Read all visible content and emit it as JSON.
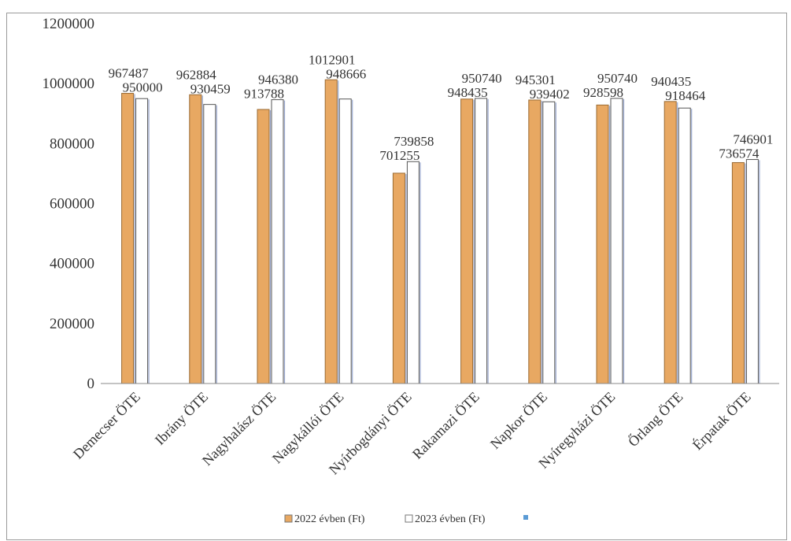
{
  "chart_data": {
    "type": "bar",
    "title": "",
    "xlabel": "",
    "ylabel": "",
    "ylim": [
      0,
      1200000
    ],
    "yticks": [
      0,
      200000,
      400000,
      600000,
      800000,
      1000000,
      1200000
    ],
    "grid": false,
    "legend_position": "bottom",
    "categories": [
      "Demecser ÖTE",
      "Ibrány ÖTE",
      "Nagyhalász ÖTE",
      "Nagykállói ÖTE",
      "Nyírbogdányi ÖTE",
      "Rakamazi ÖTE",
      "Napkor ÖTE",
      "Nyíregyházi ÖTE",
      "Őrlang ÖTE",
      "Érpatak ÖTE"
    ],
    "series": [
      {
        "name": "2022 évben (Ft)",
        "color": "#e8a862",
        "values": [
          967487,
          962884,
          913788,
          1012901,
          701255,
          948435,
          945301,
          928598,
          940435,
          736574
        ],
        "labels": [
          "967487",
          "962884",
          "913788",
          "1012901",
          "701255",
          "948435",
          "945301",
          "928598",
          "940435",
          "736574"
        ]
      },
      {
        "name": "2023 évben (Ft)",
        "color": "#ffffff",
        "values": [
          950000,
          930459,
          946380,
          948666,
          739858,
          950740,
          939402,
          950740,
          918464,
          746901
        ],
        "labels": [
          "950000",
          "930459",
          "946380",
          "948666",
          "739858",
          "950740",
          "939402",
          "950740",
          "918464",
          "746901"
        ]
      }
    ],
    "extra_legend": {
      "name": "",
      "color": "#5b9bd5"
    }
  }
}
